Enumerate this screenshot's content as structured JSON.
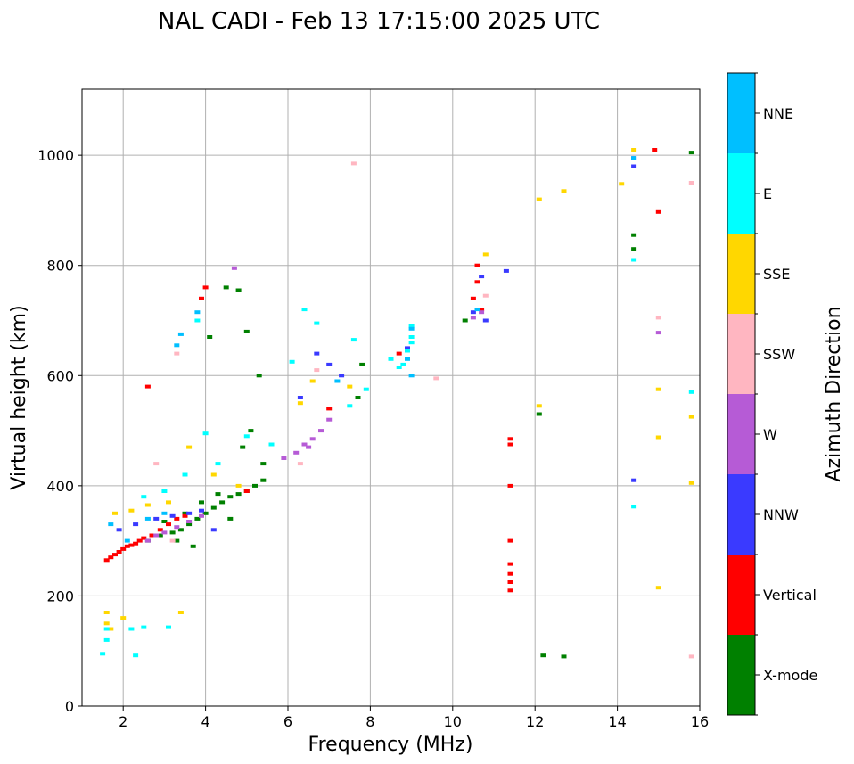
{
  "chart_data": {
    "type": "scatter",
    "title": "NAL CADI - Feb 13 17:15:00 2025 UTC",
    "xlabel": "Frequency (MHz)",
    "ylabel": "Virtual height (km)",
    "xlim": [
      1,
      16
    ],
    "ylim": [
      0,
      1120
    ],
    "xticks": [
      2,
      4,
      6,
      8,
      10,
      12,
      14,
      16
    ],
    "yticks": [
      0,
      200,
      400,
      600,
      800,
      1000
    ],
    "grid": true,
    "colorbar": {
      "title": "Azimuth Direction",
      "categories": [
        {
          "name": "X-mode",
          "color": "#008000"
        },
        {
          "name": "Vertical",
          "color": "#ff0000"
        },
        {
          "name": "NNW",
          "color": "#3a3aff"
        },
        {
          "name": "W",
          "color": "#b65bd6"
        },
        {
          "name": "SSW",
          "color": "#ffb6c1"
        },
        {
          "name": "SSE",
          "color": "#ffd700"
        },
        {
          "name": "E",
          "color": "#00ffff"
        },
        {
          "name": "NNE",
          "color": "#00bfff"
        }
      ]
    },
    "series": [
      {
        "name": "X-mode",
        "points": [
          [
            2.6,
            300
          ],
          [
            2.9,
            310
          ],
          [
            3.2,
            315
          ],
          [
            3.4,
            320
          ],
          [
            3.6,
            330
          ],
          [
            3.8,
            340
          ],
          [
            4.0,
            350
          ],
          [
            4.2,
            360
          ],
          [
            4.4,
            370
          ],
          [
            4.6,
            380
          ],
          [
            4.8,
            385
          ],
          [
            5.0,
            390
          ],
          [
            5.2,
            400
          ],
          [
            5.4,
            410
          ],
          [
            3.5,
            350
          ],
          [
            3.9,
            370
          ],
          [
            4.3,
            385
          ],
          [
            4.1,
            670
          ],
          [
            4.5,
            760
          ],
          [
            4.8,
            755
          ],
          [
            5.0,
            680
          ],
          [
            5.4,
            440
          ],
          [
            5.1,
            500
          ],
          [
            4.9,
            470
          ],
          [
            5.3,
            600
          ],
          [
            7.8,
            620
          ],
          [
            7.7,
            560
          ],
          [
            10.3,
            700
          ],
          [
            12.1,
            530
          ],
          [
            12.2,
            92
          ],
          [
            12.7,
            90
          ],
          [
            14.4,
            855
          ],
          [
            14.4,
            830
          ],
          [
            15.8,
            1005
          ],
          [
            3.0,
            335
          ],
          [
            3.3,
            300
          ],
          [
            3.7,
            290
          ],
          [
            4.6,
            340
          ]
        ]
      },
      {
        "name": "Vertical",
        "points": [
          [
            1.6,
            265
          ],
          [
            1.7,
            270
          ],
          [
            1.8,
            275
          ],
          [
            1.9,
            280
          ],
          [
            2.0,
            285
          ],
          [
            2.1,
            290
          ],
          [
            2.2,
            292
          ],
          [
            2.3,
            295
          ],
          [
            2.4,
            300
          ],
          [
            2.5,
            305
          ],
          [
            2.7,
            310
          ],
          [
            2.9,
            320
          ],
          [
            3.1,
            330
          ],
          [
            3.3,
            340
          ],
          [
            3.5,
            345
          ],
          [
            2.6,
            580
          ],
          [
            3.9,
            740
          ],
          [
            4.0,
            760
          ],
          [
            5.0,
            390
          ],
          [
            7.0,
            540
          ],
          [
            10.6,
            800
          ],
          [
            10.6,
            770
          ],
          [
            10.5,
            740
          ],
          [
            10.7,
            720
          ],
          [
            11.4,
            485
          ],
          [
            11.4,
            475
          ],
          [
            11.4,
            400
          ],
          [
            11.4,
            300
          ],
          [
            11.4,
            258
          ],
          [
            11.4,
            240
          ],
          [
            11.4,
            225
          ],
          [
            11.4,
            210
          ],
          [
            14.9,
            1010
          ],
          [
            15.0,
            897
          ],
          [
            8.7,
            640
          ]
        ]
      },
      {
        "name": "NNW",
        "points": [
          [
            1.9,
            320
          ],
          [
            2.3,
            330
          ],
          [
            2.8,
            340
          ],
          [
            3.2,
            345
          ],
          [
            3.6,
            350
          ],
          [
            3.9,
            355
          ],
          [
            4.2,
            320
          ],
          [
            6.3,
            560
          ],
          [
            6.7,
            640
          ],
          [
            7.0,
            620
          ],
          [
            7.3,
            600
          ],
          [
            10.5,
            715
          ],
          [
            10.8,
            700
          ],
          [
            10.7,
            780
          ],
          [
            11.3,
            790
          ],
          [
            14.4,
            980
          ],
          [
            14.4,
            995
          ],
          [
            14.4,
            410
          ],
          [
            8.9,
            650
          ]
        ]
      },
      {
        "name": "W",
        "points": [
          [
            2.6,
            300
          ],
          [
            2.8,
            310
          ],
          [
            3.0,
            315
          ],
          [
            3.3,
            325
          ],
          [
            3.6,
            335
          ],
          [
            3.9,
            345
          ],
          [
            5.9,
            450
          ],
          [
            6.2,
            460
          ],
          [
            6.4,
            475
          ],
          [
            6.6,
            485
          ],
          [
            6.8,
            500
          ],
          [
            7.0,
            520
          ],
          [
            6.5,
            470
          ],
          [
            15.0,
            678
          ],
          [
            4.7,
            795
          ],
          [
            10.7,
            715
          ],
          [
            10.5,
            705
          ]
        ]
      },
      {
        "name": "SSW",
        "points": [
          [
            2.8,
            440
          ],
          [
            3.2,
            300
          ],
          [
            3.3,
            640
          ],
          [
            6.3,
            440
          ],
          [
            6.7,
            610
          ],
          [
            7.6,
            985
          ],
          [
            9.6,
            595
          ],
          [
            10.8,
            745
          ],
          [
            15.0,
            705
          ],
          [
            15.8,
            950
          ],
          [
            15.8,
            90
          ]
        ]
      },
      {
        "name": "SSE",
        "points": [
          [
            1.6,
            170
          ],
          [
            1.6,
            150
          ],
          [
            1.7,
            140
          ],
          [
            2.0,
            160
          ],
          [
            1.8,
            350
          ],
          [
            2.2,
            355
          ],
          [
            2.6,
            365
          ],
          [
            3.1,
            370
          ],
          [
            3.6,
            470
          ],
          [
            4.2,
            420
          ],
          [
            4.8,
            400
          ],
          [
            6.3,
            550
          ],
          [
            6.6,
            590
          ],
          [
            7.5,
            580
          ],
          [
            10.8,
            820
          ],
          [
            12.1,
            920
          ],
          [
            12.1,
            545
          ],
          [
            12.7,
            935
          ],
          [
            14.1,
            948
          ],
          [
            14.4,
            1010
          ],
          [
            15.0,
            575
          ],
          [
            15.0,
            488
          ],
          [
            15.0,
            215
          ],
          [
            15.8,
            525
          ],
          [
            15.8,
            405
          ],
          [
            3.4,
            170
          ]
        ]
      },
      {
        "name": "E",
        "points": [
          [
            1.6,
            140
          ],
          [
            1.5,
            95
          ],
          [
            1.6,
            120
          ],
          [
            2.2,
            140
          ],
          [
            2.5,
            143
          ],
          [
            3.1,
            143
          ],
          [
            2.3,
            92
          ],
          [
            2.5,
            380
          ],
          [
            3.0,
            390
          ],
          [
            3.5,
            420
          ],
          [
            4.0,
            495
          ],
          [
            4.3,
            440
          ],
          [
            5.0,
            490
          ],
          [
            5.6,
            475
          ],
          [
            6.1,
            625
          ],
          [
            6.4,
            720
          ],
          [
            6.7,
            695
          ],
          [
            7.6,
            665
          ],
          [
            7.9,
            575
          ],
          [
            7.5,
            545
          ],
          [
            8.5,
            630
          ],
          [
            8.9,
            645
          ],
          [
            8.8,
            620
          ],
          [
            9.0,
            690
          ],
          [
            9.0,
            670
          ],
          [
            9.0,
            660
          ],
          [
            8.7,
            615
          ],
          [
            14.4,
            810
          ],
          [
            14.4,
            362
          ],
          [
            15.8,
            570
          ],
          [
            3.8,
            700
          ]
        ]
      },
      {
        "name": "NNE",
        "points": [
          [
            1.7,
            330
          ],
          [
            2.1,
            300
          ],
          [
            2.6,
            340
          ],
          [
            3.0,
            350
          ],
          [
            3.4,
            675
          ],
          [
            3.3,
            655
          ],
          [
            3.8,
            715
          ],
          [
            7.2,
            590
          ],
          [
            8.9,
            630
          ],
          [
            9.0,
            600
          ],
          [
            9.0,
            685
          ],
          [
            10.6,
            720
          ],
          [
            14.4,
            995
          ]
        ]
      }
    ]
  }
}
